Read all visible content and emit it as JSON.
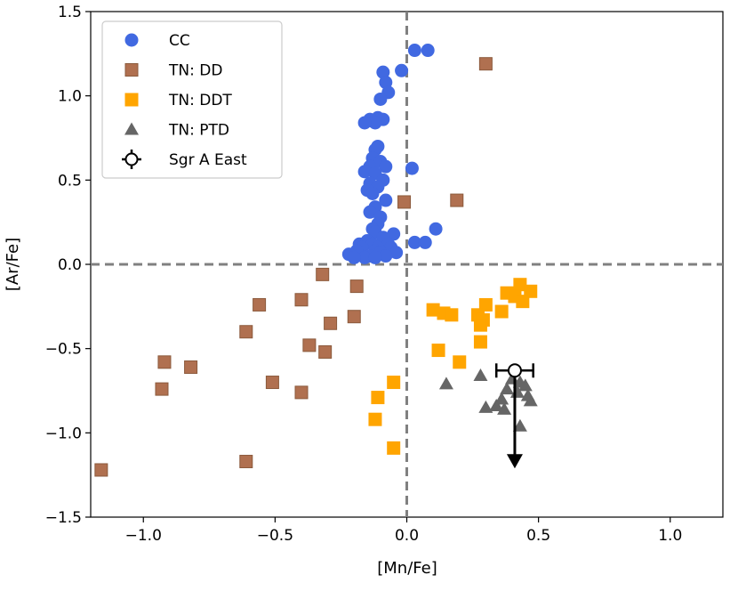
{
  "chart_data": {
    "type": "scatter",
    "xlabel": "[Mn/Fe]",
    "ylabel": "[Ar/Fe]",
    "xlim": [
      -1.2,
      1.2
    ],
    "ylim": [
      -1.5,
      1.5
    ],
    "xticks": [
      -1.0,
      -0.5,
      0.0,
      0.5,
      1.0
    ],
    "xtick_labels": [
      "−1.0",
      "−0.5",
      "0.0",
      "0.5",
      "1.0"
    ],
    "yticks": [
      -1.5,
      -1.0,
      -0.5,
      0.0,
      0.5,
      1.0,
      1.5
    ],
    "ytick_labels": [
      "−1.5",
      "−1.0",
      "−0.5",
      "0.0",
      "0.5",
      "1.0",
      "1.5"
    ],
    "reference_lines": {
      "x": 0.0,
      "y": 0.0,
      "style": "dashed",
      "color": "#808080"
    },
    "legend_position": "top-left",
    "series": [
      {
        "name": "CC",
        "marker": "circle",
        "color": "#4169E1",
        "points": [
          [
            0.03,
            1.27
          ],
          [
            0.08,
            1.27
          ],
          [
            -0.02,
            1.15
          ],
          [
            -0.09,
            1.14
          ],
          [
            -0.08,
            1.08
          ],
          [
            -0.07,
            1.02
          ],
          [
            -0.1,
            0.98
          ],
          [
            -0.11,
            0.87
          ],
          [
            -0.09,
            0.86
          ],
          [
            -0.13,
            0.85
          ],
          [
            -0.14,
            0.86
          ],
          [
            -0.12,
            0.84
          ],
          [
            -0.16,
            0.84
          ],
          [
            -0.11,
            0.7
          ],
          [
            -0.12,
            0.68
          ],
          [
            -0.13,
            0.63
          ],
          [
            -0.1,
            0.61
          ],
          [
            -0.14,
            0.58
          ],
          [
            -0.08,
            0.58
          ],
          [
            -0.16,
            0.55
          ],
          [
            -0.12,
            0.54
          ],
          [
            -0.09,
            0.5
          ],
          [
            -0.14,
            0.48
          ],
          [
            -0.11,
            0.46
          ],
          [
            -0.15,
            0.44
          ],
          [
            -0.13,
            0.42
          ],
          [
            -0.08,
            0.38
          ],
          [
            -0.12,
            0.34
          ],
          [
            -0.14,
            0.31
          ],
          [
            -0.1,
            0.28
          ],
          [
            -0.11,
            0.24
          ],
          [
            -0.13,
            0.21
          ],
          [
            -0.12,
            0.19
          ],
          [
            -0.05,
            0.18
          ],
          [
            -0.09,
            0.16
          ],
          [
            -0.15,
            0.14
          ],
          [
            -0.13,
            0.12
          ],
          [
            -0.18,
            0.12
          ],
          [
            -0.07,
            0.12
          ],
          [
            -0.11,
            0.1
          ],
          [
            -0.17,
            0.1
          ],
          [
            -0.06,
            0.1
          ],
          [
            -0.12,
            0.08
          ],
          [
            -0.19,
            0.08
          ],
          [
            -0.1,
            0.07
          ],
          [
            -0.04,
            0.07
          ],
          [
            -0.22,
            0.06
          ],
          [
            -0.14,
            0.05
          ],
          [
            -0.08,
            0.05
          ],
          [
            -0.16,
            0.04
          ],
          [
            -0.12,
            0.04
          ],
          [
            -0.2,
            0.04
          ],
          [
            0.03,
            0.13
          ],
          [
            0.07,
            0.13
          ],
          [
            0.11,
            0.21
          ],
          [
            0.02,
            0.57
          ]
        ]
      },
      {
        "name": "TN: DD",
        "marker": "square",
        "color": "#B07050",
        "points": [
          [
            0.3,
            1.19
          ],
          [
            0.19,
            0.38
          ],
          [
            -0.01,
            0.37
          ],
          [
            -0.32,
            -0.06
          ],
          [
            -0.19,
            -0.13
          ],
          [
            -0.4,
            -0.21
          ],
          [
            -0.56,
            -0.24
          ],
          [
            -0.29,
            -0.35
          ],
          [
            -0.2,
            -0.31
          ],
          [
            -0.61,
            -0.4
          ],
          [
            -0.37,
            -0.48
          ],
          [
            -0.31,
            -0.52
          ],
          [
            -0.92,
            -0.58
          ],
          [
            -0.82,
            -0.61
          ],
          [
            -0.51,
            -0.7
          ],
          [
            -0.4,
            -0.76
          ],
          [
            -0.93,
            -0.74
          ],
          [
            -0.61,
            -1.17
          ],
          [
            -1.16,
            -1.22
          ]
        ]
      },
      {
        "name": "TN: DDT",
        "marker": "square",
        "color": "#FFA500",
        "points": [
          [
            0.43,
            -0.12
          ],
          [
            0.47,
            -0.16
          ],
          [
            0.38,
            -0.17
          ],
          [
            0.41,
            -0.19
          ],
          [
            0.44,
            -0.22
          ],
          [
            0.3,
            -0.24
          ],
          [
            0.1,
            -0.27
          ],
          [
            0.14,
            -0.29
          ],
          [
            0.17,
            -0.3
          ],
          [
            0.27,
            -0.3
          ],
          [
            0.29,
            -0.33
          ],
          [
            0.36,
            -0.28
          ],
          [
            0.28,
            -0.36
          ],
          [
            0.28,
            -0.46
          ],
          [
            0.12,
            -0.51
          ],
          [
            0.2,
            -0.58
          ],
          [
            -0.05,
            -0.7
          ],
          [
            -0.11,
            -0.79
          ],
          [
            -0.12,
            -0.92
          ],
          [
            -0.05,
            -1.09
          ]
        ]
      },
      {
        "name": "TN: PTD",
        "marker": "triangle",
        "color": "#666666",
        "points": [
          [
            0.15,
            -0.71
          ],
          [
            0.28,
            -0.66
          ],
          [
            0.4,
            -0.68
          ],
          [
            0.43,
            -0.7
          ],
          [
            0.45,
            -0.72
          ],
          [
            0.38,
            -0.74
          ],
          [
            0.42,
            -0.76
          ],
          [
            0.46,
            -0.78
          ],
          [
            0.36,
            -0.8
          ],
          [
            0.34,
            -0.84
          ],
          [
            0.47,
            -0.81
          ],
          [
            0.3,
            -0.85
          ],
          [
            0.37,
            -0.86
          ],
          [
            0.43,
            -0.96
          ]
        ]
      },
      {
        "name": "Sgr A East",
        "marker": "circle-errorbar",
        "color": "#000000",
        "points": [
          [
            0.41,
            -0.63
          ]
        ],
        "x_error": [
          0.07,
          0.07
        ],
        "upper_limit_to": -1.2
      }
    ]
  }
}
